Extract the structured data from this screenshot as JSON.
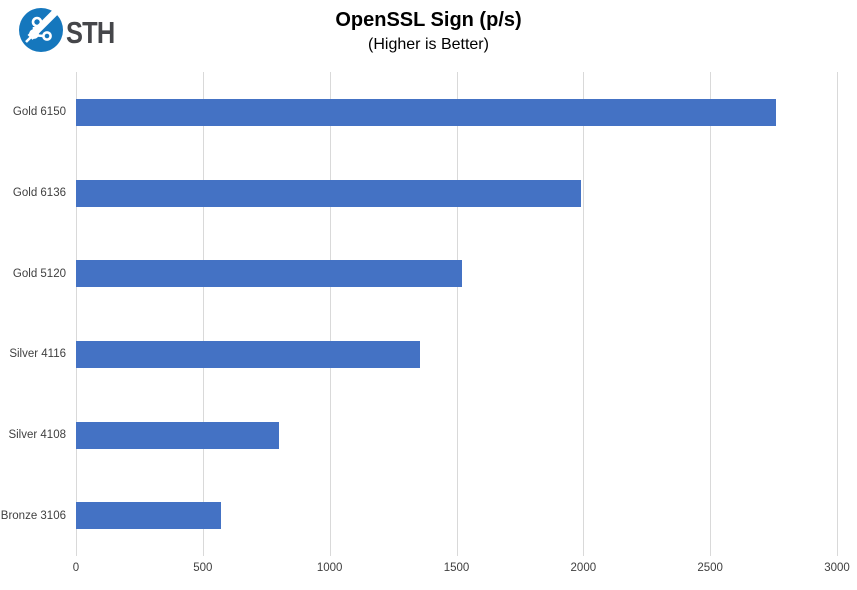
{
  "logo": {
    "text": "STH",
    "icon": "sth-circuit-logo",
    "circle_color": "#1577bd",
    "text_color": "#45464a"
  },
  "chart_data": {
    "type": "bar",
    "orientation": "horizontal",
    "title": "OpenSSL Sign (p/s)",
    "subtitle": "(Higher is Better)",
    "categories": [
      "Gold 6150",
      "Gold 6136",
      "Gold 5120",
      "Silver 4116",
      "Silver 4108",
      "Bronze 3106"
    ],
    "values": [
      2760,
      1990,
      1520,
      1355,
      800,
      572
    ],
    "xlabel": "",
    "ylabel": "",
    "xlim": [
      0,
      3000
    ],
    "xticks": [
      0,
      500,
      1000,
      1500,
      2000,
      2500,
      3000
    ],
    "grid": true,
    "legend": false,
    "bar_color": "#4472C4",
    "gridline_color": "#D9D9D9",
    "tick_label_color": "#404040"
  }
}
